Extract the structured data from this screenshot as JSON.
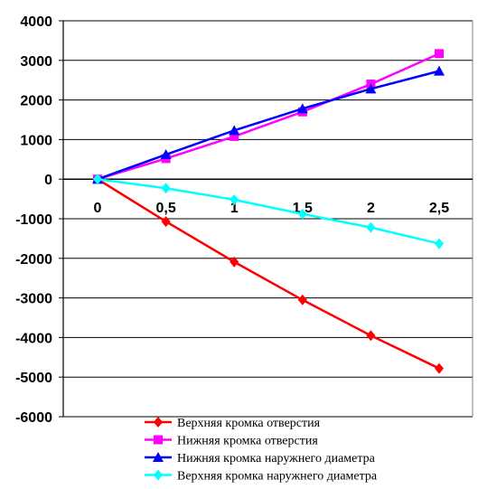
{
  "chart_data": {
    "type": "line",
    "categories": [
      "0",
      "0,5",
      "1",
      "1,5",
      "2",
      "2,5"
    ],
    "y_ticks": [
      "4000",
      "3000",
      "2000",
      "1000",
      "0",
      "-1000",
      "-2000",
      "-3000",
      "-4000",
      "-5000",
      "-6000"
    ],
    "ylim": [
      -6000,
      4000
    ],
    "grid": true,
    "legend_position": "bottom",
    "series": [
      {
        "name": "Верхняя кромка отверстия",
        "color": "#ff0000",
        "marker": "diamond",
        "values": [
          0,
          -1070,
          -2090,
          -3050,
          -3950,
          -4780
        ]
      },
      {
        "name": "Нижняя кромка отверстия",
        "color": "#ff00ff",
        "marker": "square",
        "values": [
          0,
          520,
          1080,
          1700,
          2400,
          3170
        ]
      },
      {
        "name": "Нижняя кромка наружнего диаметра",
        "color": "#0000ff",
        "marker": "triangle",
        "values": [
          0,
          620,
          1230,
          1780,
          2280,
          2730
        ]
      },
      {
        "name": "Верхняя кромка наружнего диаметра",
        "color": "#00ffff",
        "marker": "diamond",
        "values": [
          0,
          -230,
          -520,
          -880,
          -1220,
          -1630
        ]
      }
    ]
  }
}
